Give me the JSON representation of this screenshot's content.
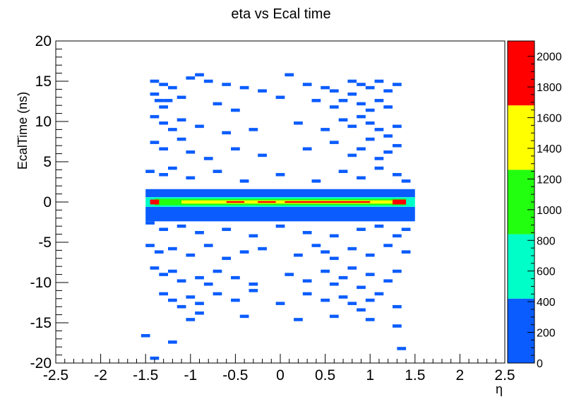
{
  "chart_data": {
    "type": "heatmap",
    "title": "eta vs Ecal time",
    "xlabel": "η",
    "ylabel": "EcalTime (ns)",
    "xlim": [
      -2.5,
      2.5
    ],
    "ylim": [
      -20,
      20
    ],
    "x_ticks": [
      "-2.5",
      "-2",
      "-1.5",
      "-1",
      "-0.5",
      "0",
      "0.5",
      "1",
      "1.5",
      "2",
      "2.5"
    ],
    "y_ticks": [
      "-20",
      "-15",
      "-10",
      "-5",
      "0",
      "5",
      "10",
      "15",
      "20"
    ],
    "z_range": [
      0,
      2100
    ],
    "z_ticks": [
      "0",
      "200",
      "400",
      "600",
      "800",
      "1000",
      "1200",
      "1400",
      "1600",
      "1800",
      "2000"
    ],
    "color_levels": [
      {
        "min": 0,
        "max": 420,
        "color": "#0a5cff"
      },
      {
        "min": 420,
        "max": 840,
        "color": "#00ffc8"
      },
      {
        "min": 840,
        "max": 1260,
        "color": "#22ff0f"
      },
      {
        "min": 1260,
        "max": 1680,
        "color": "#ffff00"
      },
      {
        "min": 1680,
        "max": 2100,
        "color": "#ff0000"
      }
    ],
    "bin_width": {
      "x": 0.1,
      "y": 0.4
    },
    "central_band_cells": [
      {
        "x0": -1.5,
        "x1": 1.5,
        "y0": 0.6,
        "y1": 1.6,
        "value": 300
      },
      {
        "x0": -1.5,
        "x1": 1.5,
        "y0": -2.4,
        "y1": -0.6,
        "value": 300
      },
      {
        "x0": -1.5,
        "x1": 1.5,
        "y0": -0.6,
        "y1": 0.6,
        "value": 600
      },
      {
        "x0": -1.4,
        "x1": 1.4,
        "y0": -0.4,
        "y1": 0.4,
        "value": 1000
      },
      {
        "x0": -1.1,
        "x1": 1.3,
        "y0": -0.2,
        "y1": 0.2,
        "value": 1500
      },
      {
        "x0": -1.45,
        "x1": -1.35,
        "y0": -0.3,
        "y1": 0.3,
        "value": 2000
      },
      {
        "x0": 1.25,
        "x1": 1.4,
        "y0": -0.3,
        "y1": 0.3,
        "value": 2000
      },
      {
        "x0": 0.05,
        "x1": 1.0,
        "y0": -0.1,
        "y1": 0.1,
        "value": 2000
      },
      {
        "x0": -0.6,
        "x1": -0.4,
        "y0": -0.1,
        "y1": 0.1,
        "value": 2000
      },
      {
        "x0": -0.25,
        "x1": -0.05,
        "y0": -0.1,
        "y1": 0.1,
        "value": 2000
      }
    ],
    "scatter_cells": [
      [
        -1.4,
        15
      ],
      [
        -1.3,
        14.6
      ],
      [
        -1.2,
        14.2
      ],
      [
        -1.0,
        15.4
      ],
      [
        -0.9,
        15.8
      ],
      [
        -0.8,
        15.0
      ],
      [
        -0.6,
        14.6
      ],
      [
        -0.4,
        14.2
      ],
      [
        -0.2,
        13.8
      ],
      [
        0.1,
        15.8
      ],
      [
        0.3,
        14.6
      ],
      [
        0.5,
        14.2
      ],
      [
        0.6,
        13.8
      ],
      [
        0.8,
        15
      ],
      [
        0.9,
        14.6
      ],
      [
        1.0,
        14.2
      ],
      [
        1.1,
        15.0
      ],
      [
        1.2,
        13.8
      ],
      [
        1.3,
        14.6
      ],
      [
        -1.4,
        13.4
      ],
      [
        -1.35,
        12.6
      ],
      [
        -1.3,
        11.8
      ],
      [
        -1.25,
        12.6
      ],
      [
        -1.1,
        13.0
      ],
      [
        -0.7,
        12.2
      ],
      [
        -0.5,
        11.4
      ],
      [
        0.0,
        13.0
      ],
      [
        0.4,
        12.6
      ],
      [
        0.6,
        11.8
      ],
      [
        0.7,
        12.6
      ],
      [
        0.8,
        13.4
      ],
      [
        0.9,
        12.2
      ],
      [
        1.0,
        11.4
      ],
      [
        1.1,
        12.6
      ],
      [
        1.2,
        11.8
      ],
      [
        -1.4,
        10.6
      ],
      [
        -1.3,
        9.8
      ],
      [
        -1.2,
        9.0
      ],
      [
        -1.1,
        10.2
      ],
      [
        -0.9,
        9.4
      ],
      [
        -0.6,
        8.6
      ],
      [
        -0.3,
        9.0
      ],
      [
        0.2,
        9.8
      ],
      [
        0.5,
        9.0
      ],
      [
        0.7,
        10.2
      ],
      [
        0.8,
        9.4
      ],
      [
        0.9,
        10.6
      ],
      [
        1.0,
        9.8
      ],
      [
        1.1,
        9.0
      ],
      [
        1.2,
        8.2
      ],
      [
        1.3,
        9.4
      ],
      [
        -1.4,
        7.4
      ],
      [
        -1.3,
        6.6
      ],
      [
        -1.1,
        7.8
      ],
      [
        -1.0,
        6.2
      ],
      [
        -0.8,
        5.4
      ],
      [
        -0.5,
        6.6
      ],
      [
        -0.2,
        5.8
      ],
      [
        0.3,
        6.6
      ],
      [
        0.6,
        7.4
      ],
      [
        0.8,
        5.8
      ],
      [
        0.9,
        6.6
      ],
      [
        1.0,
        7.8
      ],
      [
        1.1,
        5.4
      ],
      [
        1.2,
        6.2
      ],
      [
        1.3,
        7.0
      ],
      [
        -1.45,
        3.8
      ],
      [
        -1.3,
        3.4
      ],
      [
        -1.2,
        4.2
      ],
      [
        -1.0,
        3.0
      ],
      [
        -0.7,
        3.8
      ],
      [
        -0.4,
        2.6
      ],
      [
        0.0,
        3.4
      ],
      [
        0.4,
        2.6
      ],
      [
        0.7,
        3.8
      ],
      [
        0.9,
        3.0
      ],
      [
        1.1,
        4.2
      ],
      [
        1.3,
        3.4
      ],
      [
        1.4,
        2.6
      ],
      [
        -1.45,
        -2.6
      ],
      [
        -1.3,
        -3.4
      ],
      [
        -1.1,
        -3.0
      ],
      [
        -0.9,
        -3.8
      ],
      [
        -0.6,
        -3.4
      ],
      [
        -0.3,
        -4.2
      ],
      [
        0.0,
        -3.0
      ],
      [
        0.3,
        -3.8
      ],
      [
        0.6,
        -4.2
      ],
      [
        0.9,
        -3.4
      ],
      [
        1.1,
        -3.0
      ],
      [
        1.3,
        -4.2
      ],
      [
        1.4,
        -3.4
      ],
      [
        -1.45,
        -5.4
      ],
      [
        -1.35,
        -6.2
      ],
      [
        -1.2,
        -5.8
      ],
      [
        -1.0,
        -6.6
      ],
      [
        -0.8,
        -5.4
      ],
      [
        -0.6,
        -7.0
      ],
      [
        -0.4,
        -6.2
      ],
      [
        -0.2,
        -5.8
      ],
      [
        0.2,
        -6.6
      ],
      [
        0.4,
        -5.4
      ],
      [
        0.5,
        -6.2
      ],
      [
        0.6,
        -7.0
      ],
      [
        0.8,
        -5.8
      ],
      [
        1.0,
        -6.6
      ],
      [
        1.2,
        -5.4
      ],
      [
        1.4,
        -6.2
      ],
      [
        -1.4,
        -8.2
      ],
      [
        -1.3,
        -9.0
      ],
      [
        -1.2,
        -8.6
      ],
      [
        -1.1,
        -9.8
      ],
      [
        -0.9,
        -9.4
      ],
      [
        -0.8,
        -10.2
      ],
      [
        -0.7,
        -8.6
      ],
      [
        -0.5,
        -9.4
      ],
      [
        -0.3,
        -10.2
      ],
      [
        0.1,
        -9.0
      ],
      [
        0.3,
        -9.8
      ],
      [
        0.5,
        -8.6
      ],
      [
        0.6,
        -10.2
      ],
      [
        0.7,
        -9.4
      ],
      [
        0.8,
        -8.2
      ],
      [
        0.9,
        -10.6
      ],
      [
        1.0,
        -9.0
      ],
      [
        1.2,
        -9.8
      ],
      [
        1.3,
        -8.6
      ],
      [
        -1.3,
        -11.4
      ],
      [
        -1.2,
        -12.2
      ],
      [
        -1.1,
        -13.0
      ],
      [
        -1.0,
        -11.8
      ],
      [
        -0.9,
        -12.6
      ],
      [
        -0.7,
        -11.4
      ],
      [
        -0.5,
        -12.2
      ],
      [
        -0.3,
        -11.0
      ],
      [
        0.0,
        -12.6
      ],
      [
        0.3,
        -11.4
      ],
      [
        0.5,
        -12.2
      ],
      [
        0.7,
        -11.8
      ],
      [
        0.8,
        -12.6
      ],
      [
        0.9,
        -13.4
      ],
      [
        1.0,
        -12.2
      ],
      [
        1.1,
        -11.4
      ],
      [
        1.3,
        -13.0
      ],
      [
        -1.5,
        -16.6
      ],
      [
        -1.2,
        -17.4
      ],
      [
        -1.0,
        -14.6
      ],
      [
        -0.9,
        -13.8
      ],
      [
        -0.4,
        -14.2
      ],
      [
        0.2,
        -14.6
      ],
      [
        0.6,
        -14.2
      ],
      [
        1.0,
        -14.6
      ],
      [
        1.3,
        -15.4
      ],
      [
        1.35,
        -18.2
      ],
      [
        -1.4,
        -19.4
      ]
    ]
  }
}
